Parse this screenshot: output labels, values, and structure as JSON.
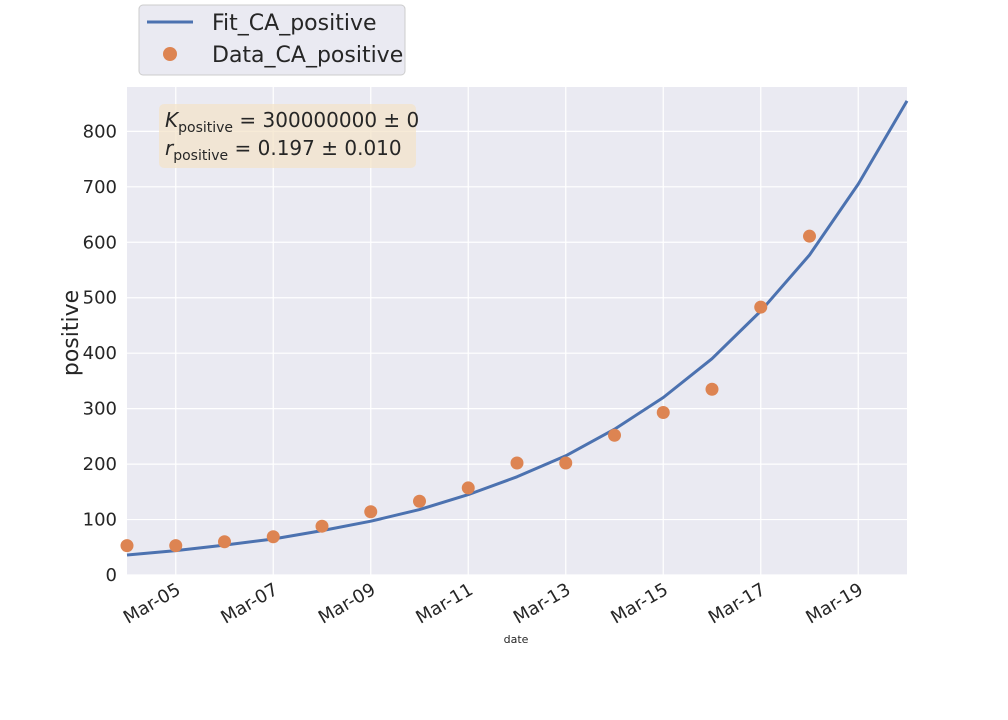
{
  "chart_data": {
    "type": "line",
    "xlabel": "date",
    "ylabel": "positive",
    "x_ticks": [
      "Mar-05",
      "Mar-07",
      "Mar-09",
      "Mar-11",
      "Mar-13",
      "Mar-15",
      "Mar-17",
      "Mar-19"
    ],
    "y_ticks": [
      "0",
      "100",
      "200",
      "300",
      "400",
      "500",
      "600",
      "700",
      "800"
    ],
    "xlim": [
      "2020-03-04",
      "2020-03-20"
    ],
    "ylim": [
      0,
      880
    ],
    "grid": true,
    "legend_placement": "top-left, above plot",
    "annotation": {
      "k_symbol": "K",
      "k_sub": "positive",
      "k_value": " = 300000000 ± 0",
      "r_symbol": "r",
      "r_sub": "positive",
      "r_value": " = 0.197 ± 0.010"
    },
    "series": [
      {
        "name": "Fit_CA_positive",
        "kind": "line",
        "color": "#4c72b0",
        "x": [
          "2020-03-04",
          "2020-03-05",
          "2020-03-06",
          "2020-03-07",
          "2020-03-08",
          "2020-03-09",
          "2020-03-10",
          "2020-03-11",
          "2020-03-12",
          "2020-03-13",
          "2020-03-14",
          "2020-03-15",
          "2020-03-16",
          "2020-03-17",
          "2020-03-18",
          "2020-03-19",
          "2020-03-20"
        ],
        "y": [
          36,
          44,
          54,
          65,
          80,
          97,
          118,
          145,
          177,
          215,
          263,
          320,
          390,
          476,
          577,
          705,
          855
        ]
      },
      {
        "name": "Data_CA_positive",
        "kind": "scatter",
        "color": "#dd8452",
        "x": [
          "2020-03-04",
          "2020-03-05",
          "2020-03-06",
          "2020-03-07",
          "2020-03-08",
          "2020-03-09",
          "2020-03-10",
          "2020-03-11",
          "2020-03-12",
          "2020-03-13",
          "2020-03-14",
          "2020-03-15",
          "2020-03-16",
          "2020-03-17",
          "2020-03-18"
        ],
        "y": [
          53,
          53,
          60,
          69,
          88,
          114,
          133,
          157,
          202,
          202,
          252,
          293,
          335,
          483,
          611
        ]
      }
    ]
  }
}
